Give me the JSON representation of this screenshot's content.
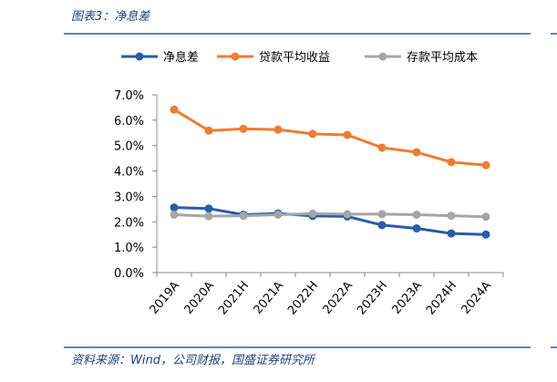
{
  "header": {
    "title": "图表3：净息差"
  },
  "source": "资料来源：Wind，公司财报，国盛证券研究所",
  "chart_data": {
    "type": "line",
    "categories": [
      "2019A",
      "2020A",
      "2021H",
      "2021A",
      "2022H",
      "2022A",
      "2023H",
      "2023A",
      "2024H",
      "2024A"
    ],
    "series": [
      {
        "name": "净息差",
        "color": "#2a5caa",
        "values": [
          2.56,
          2.52,
          2.28,
          2.33,
          2.23,
          2.21,
          1.87,
          1.74,
          1.54,
          1.5
        ]
      },
      {
        "name": "贷款平均收益",
        "color": "#ed7d31",
        "values": [
          6.42,
          5.59,
          5.66,
          5.63,
          5.46,
          5.42,
          4.92,
          4.74,
          4.35,
          4.23
        ]
      },
      {
        "name": "存款平均成本",
        "color": "#a5a5a5",
        "values": [
          2.28,
          2.22,
          2.24,
          2.28,
          2.32,
          2.3,
          2.3,
          2.28,
          2.24,
          2.2
        ]
      }
    ],
    "ylim": [
      0,
      7
    ],
    "yticks": [
      {
        "value": 0,
        "label": "0.0%"
      },
      {
        "value": 1,
        "label": "1.0%"
      },
      {
        "value": 2,
        "label": "2.0%"
      },
      {
        "value": 3,
        "label": "3.0%"
      },
      {
        "value": 4,
        "label": "4.0%"
      },
      {
        "value": 5,
        "label": "5.0%"
      },
      {
        "value": 6,
        "label": "6.0%"
      },
      {
        "value": 7,
        "label": "7.0%"
      }
    ],
    "legend": "top"
  }
}
